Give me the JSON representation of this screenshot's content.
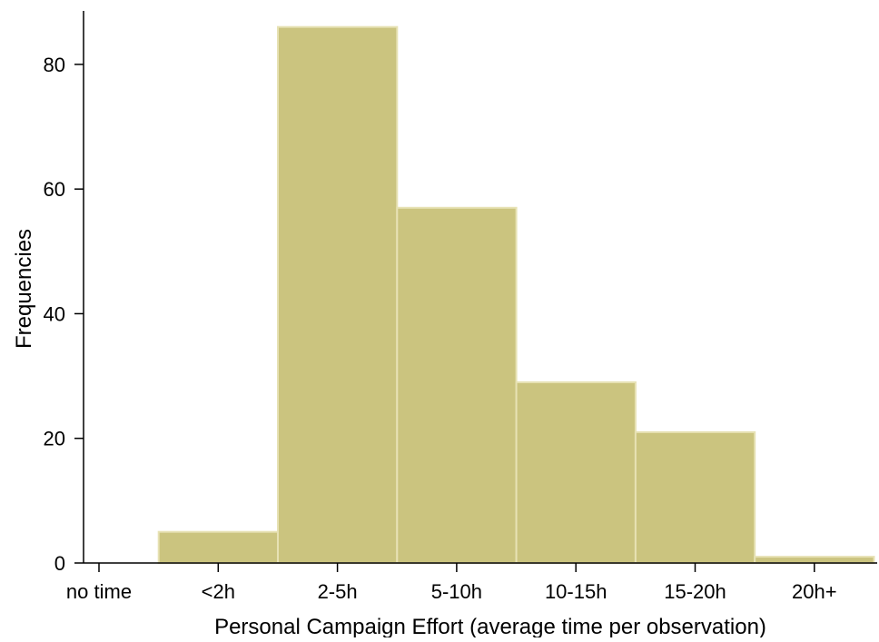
{
  "chart_data": {
    "type": "bar",
    "categories": [
      "no time",
      "<2h",
      "2-5h",
      "5-10h",
      "10-15h",
      "15-20h",
      "20h+"
    ],
    "values": [
      0,
      5,
      86,
      57,
      29,
      21,
      1
    ],
    "xlabel": "Personal Campaign Effort (average time per observation)",
    "ylabel": "Frequencies",
    "ylim": [
      0,
      88
    ],
    "yticks": [
      0,
      20,
      40,
      60,
      80
    ],
    "grid": false,
    "legend": "none",
    "colors": {
      "bar_fill": "#cbc47f",
      "bar_edge": "#e7e2b4",
      "axis": "#000000"
    }
  }
}
